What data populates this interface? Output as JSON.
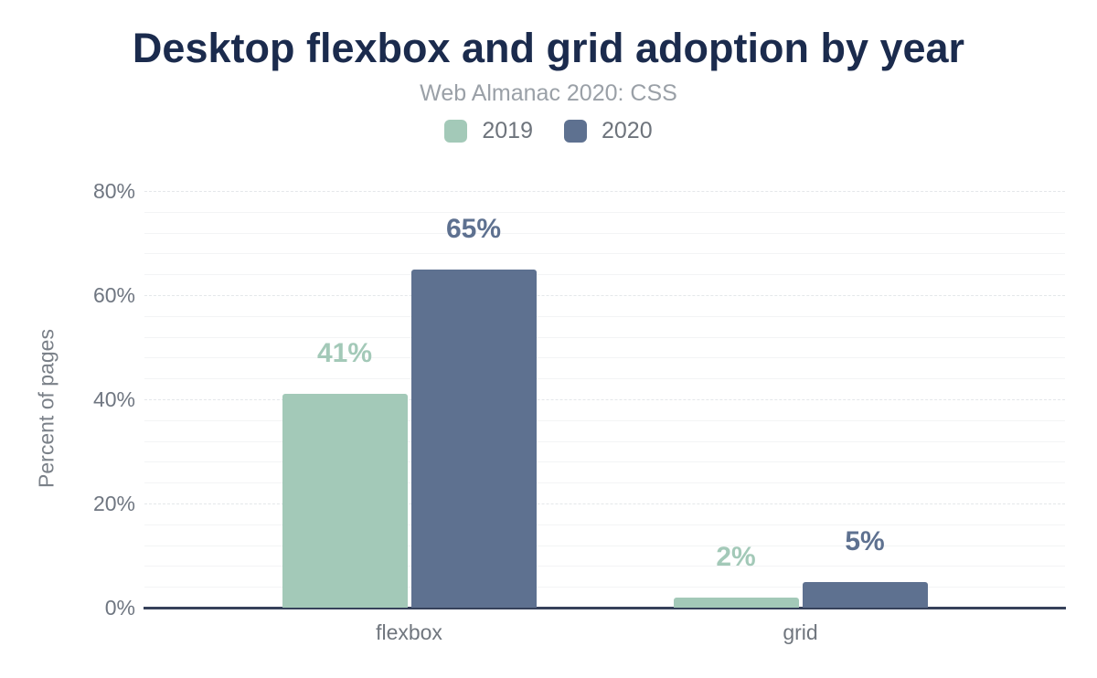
{
  "colors": {
    "title": "#1b2b4d",
    "subtitle": "#9aa0a7",
    "axis_text": "#6f7681",
    "axis_line": "#36415a",
    "grid_major": "#e4e7ea",
    "grid_minor": "#f3f4f5",
    "series_2019": "#a3c9b8",
    "series_2020": "#5e7190"
  },
  "chart_data": {
    "type": "bar",
    "title": "Desktop flexbox and grid adoption by year",
    "subtitle": "Web Almanac 2020: CSS",
    "categories": [
      "flexbox",
      "grid"
    ],
    "series": [
      {
        "name": "2019",
        "color": "#a3c9b8",
        "values": [
          41,
          2
        ],
        "labels": [
          "41%",
          "2%"
        ]
      },
      {
        "name": "2020",
        "color": "#5e7190",
        "values": [
          65,
          5
        ],
        "labels": [
          "65%",
          "5%"
        ]
      }
    ],
    "xlabel": "",
    "ylabel": "Percent of pages",
    "ylim": [
      0,
      80
    ],
    "yticks": [
      {
        "value": 0,
        "label": "0%"
      },
      {
        "value": 20,
        "label": "20%"
      },
      {
        "value": 40,
        "label": "40%"
      },
      {
        "value": 60,
        "label": "60%"
      },
      {
        "value": 80,
        "label": "80%"
      }
    ],
    "minor_grid_step_pct": 4,
    "grid": true,
    "legend_position": "top"
  }
}
